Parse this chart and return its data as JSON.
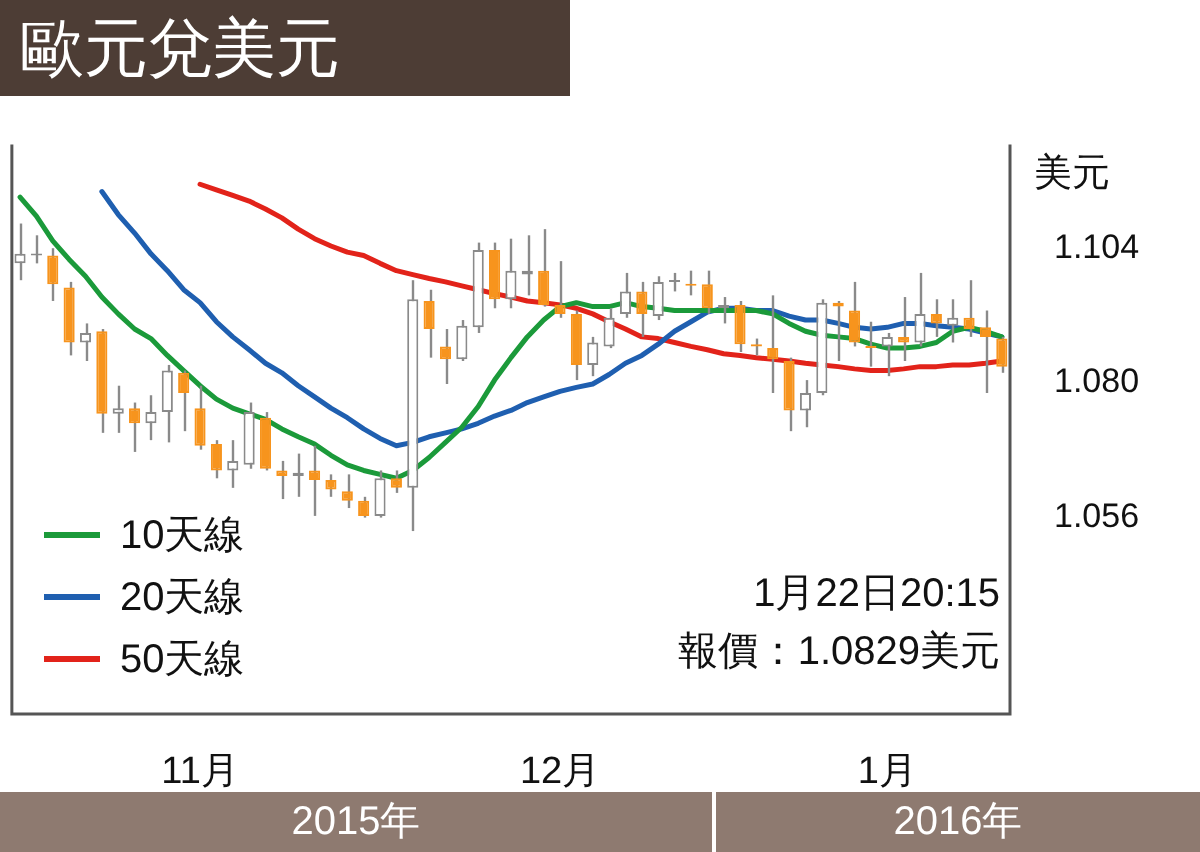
{
  "chart_data": {
    "type": "candlestick",
    "title": "歐元兌美元",
    "ylabel": "美元",
    "categories": [
      null,
      null,
      null,
      null,
      null,
      null,
      null,
      null,
      null,
      null,
      null,
      "11月",
      null,
      null,
      null,
      null,
      null,
      null,
      null,
      null,
      null,
      null,
      null,
      null,
      null,
      null,
      null,
      null,
      null,
      null,
      null,
      null,
      null,
      "12月",
      null,
      null,
      null,
      null,
      null,
      null,
      null,
      null,
      null,
      null,
      null,
      null,
      null,
      null,
      null,
      null,
      null,
      null,
      null,
      "1月",
      null,
      null,
      null,
      null,
      null,
      null,
      null
    ],
    "ohlc": [
      [
        1.1013,
        1.1084,
        1.0983,
        1.103
      ],
      [
        1.1027,
        1.1063,
        1.1013,
        1.103
      ],
      [
        1.1027,
        1.104,
        1.0946,
        1.0976
      ],
      [
        1.097,
        1.098,
        1.0849,
        1.0872
      ],
      [
        1.0872,
        1.0906,
        1.0839,
        1.0889
      ],
      [
        1.0892,
        1.0896,
        1.0711,
        1.0745
      ],
      [
        1.0745,
        1.0795,
        1.0711,
        1.0755
      ],
      [
        1.0755,
        1.0765,
        1.0677,
        1.0728
      ],
      [
        1.0728,
        1.0778,
        1.0698,
        1.0748
      ],
      [
        1.0748,
        1.0832,
        1.0694,
        1.0822
      ],
      [
        1.0818,
        1.0822,
        1.0714,
        1.0782
      ],
      [
        1.0755,
        1.0795,
        1.0681,
        1.0688
      ],
      [
        1.0691,
        1.0698,
        1.063,
        1.0644
      ],
      [
        1.0644,
        1.0698,
        1.0613,
        1.0661
      ],
      [
        1.0654,
        1.0765,
        1.0647,
        1.0748
      ],
      [
        1.0738,
        1.0748,
        1.0644,
        1.0647
      ],
      [
        1.0644,
        1.0661,
        1.0593,
        1.0634
      ],
      [
        1.0634,
        1.0674,
        1.0597,
        1.064
      ],
      [
        1.0644,
        1.0688,
        1.0563,
        1.0627
      ],
      [
        1.0627,
        1.0637,
        1.0597,
        1.061
      ],
      [
        1.0607,
        1.0637,
        1.0577,
        1.059
      ],
      [
        1.059,
        1.0597,
        1.056,
        1.0563
      ],
      [
        1.0563,
        1.0644,
        1.056,
        1.063
      ],
      [
        1.063,
        1.0644,
        1.0604,
        1.0613
      ],
      [
        1.0613,
        1.0983,
        1.0536,
        1.0949
      ],
      [
        1.0946,
        1.0966,
        1.0845,
        1.0896
      ],
      [
        1.0865,
        1.0896,
        1.0798,
        1.0842
      ],
      [
        1.0842,
        1.0912,
        1.0839,
        1.0902
      ],
      [
        1.0899,
        1.105,
        1.0889,
        1.1037
      ],
      [
        1.1037,
        1.105,
        1.0933,
        1.0949
      ],
      [
        1.0949,
        1.1057,
        1.0933,
        1.1
      ],
      [
        1.0993,
        1.1063,
        1.0956,
        1.1
      ],
      [
        1.1,
        1.1074,
        1.0936,
        1.0939
      ],
      [
        1.0939,
        1.1017,
        1.0916,
        1.0923
      ],
      [
        1.0923,
        1.0929,
        1.0805,
        1.0832
      ],
      [
        1.0832,
        1.0882,
        1.0812,
        1.0872
      ],
      [
        1.0865,
        1.0933,
        1.0862,
        1.0916
      ],
      [
        1.0923,
        1.0996,
        1.0916,
        1.0963
      ],
      [
        1.0963,
        1.098,
        1.0882,
        1.0923
      ],
      [
        1.0919,
        1.099,
        1.0912,
        1.098
      ],
      [
        1.098,
        1.0996,
        1.0963,
        1.0983
      ],
      [
        1.0976,
        1.1,
        1.0956,
        1.0973
      ],
      [
        1.0976,
        1.1,
        1.0923,
        1.0933
      ],
      [
        1.0933,
        1.0953,
        1.0906,
        1.0939
      ],
      [
        1.0939,
        1.0946,
        1.0855,
        1.0869
      ],
      [
        1.0869,
        1.0879,
        1.0849,
        1.0865
      ],
      [
        1.0862,
        1.0956,
        1.0782,
        1.0842
      ],
      [
        1.0839,
        1.0845,
        1.0714,
        1.0751
      ],
      [
        1.0751,
        1.0805,
        1.0721,
        1.0782
      ],
      [
        1.0782,
        1.0949,
        1.0778,
        1.0943
      ],
      [
        1.0943,
        1.0946,
        1.0839,
        1.0936
      ],
      [
        1.0929,
        1.098,
        1.0865,
        1.0872
      ],
      [
        1.0865,
        1.0909,
        1.0829,
        1.0862
      ],
      [
        1.0865,
        1.0889,
        1.0812,
        1.0882
      ],
      [
        1.0882,
        1.0953,
        1.0839,
        1.0872
      ],
      [
        1.0872,
        1.0996,
        1.0865,
        1.0923
      ],
      [
        1.0923,
        1.0949,
        1.0882,
        1.0906
      ],
      [
        1.0902,
        1.0949,
        1.0872,
        1.0916
      ],
      [
        1.0916,
        1.0983,
        1.0882,
        1.0896
      ],
      [
        1.0899,
        1.0929,
        1.0782,
        1.0882
      ],
      [
        1.0879,
        1.0882,
        1.0818,
        1.0829
      ]
    ],
    "colors": [
      "#8a8a8a",
      "#8a8a8a",
      "#f7941d",
      "#f7941d",
      "#8a8a8a",
      "#f7941d",
      "#8a8a8a",
      "#f7941d",
      "#8a8a8a",
      "#8a8a8a",
      "#f7941d",
      "#f7941d",
      "#f7941d",
      "#8a8a8a",
      "#8a8a8a",
      "#f7941d",
      "#f7941d",
      "#8a8a8a",
      "#f7941d",
      "#f7941d",
      "#f7941d",
      "#f7941d",
      "#8a8a8a",
      "#f7941d",
      "#8a8a8a",
      "#f7941d",
      "#f7941d",
      "#8a8a8a",
      "#8a8a8a",
      "#f7941d",
      "#8a8a8a",
      "#8a8a8a",
      "#f7941d",
      "#f7941d",
      "#f7941d",
      "#8a8a8a",
      "#8a8a8a",
      "#8a8a8a",
      "#f7941d",
      "#8a8a8a",
      "#8a8a8a",
      "#f7941d",
      "#f7941d",
      "#8a8a8a",
      "#f7941d",
      "#f7941d",
      "#f7941d",
      "#f7941d",
      "#8a8a8a",
      "#8a8a8a",
      "#f7941d",
      "#f7941d",
      "#f7941d",
      "#8a8a8a",
      "#f7941d",
      "#8a8a8a",
      "#f7941d",
      "#8a8a8a",
      "#f7941d",
      "#f7941d",
      "#f7941d"
    ],
    "series": [
      {
        "type": "line",
        "name": "10天線",
        "color": "#1b9a3a",
        "values": [
          1.1131,
          1.1097,
          1.1053,
          1.102,
          1.099,
          1.0953,
          1.0923,
          1.0896,
          1.0879,
          1.0849,
          1.0822,
          1.0795,
          1.0771,
          1.0755,
          1.0745,
          1.0735,
          1.0718,
          1.0704,
          1.0691,
          1.0671,
          1.0654,
          1.0644,
          1.0637,
          1.063,
          1.0644,
          1.0667,
          1.0694,
          1.0721,
          1.0758,
          1.0805,
          1.0845,
          1.0882,
          1.0912,
          1.0936,
          1.0943,
          1.0936,
          1.0936,
          1.0943,
          1.0936,
          1.0933,
          1.0929,
          1.0929,
          1.0929,
          1.0929,
          1.0929,
          1.0929,
          1.0923,
          1.0906,
          1.0892,
          1.0885,
          1.0882,
          1.0879,
          1.0869,
          1.0862,
          1.0862,
          1.0865,
          1.0872,
          1.0892,
          1.0899,
          1.0892,
          1.0882
        ]
      },
      {
        "type": "line",
        "name": "20天線",
        "color": "#1f5fb0",
        "values": [
          null,
          null,
          null,
          null,
          null,
          1.1141,
          1.11,
          1.1067,
          1.103,
          1.1,
          1.0966,
          1.0943,
          1.0909,
          1.0882,
          1.0859,
          1.0835,
          1.0818,
          1.0795,
          1.0775,
          1.0755,
          1.0738,
          1.0718,
          1.0701,
          1.0688,
          1.0694,
          1.0704,
          1.0711,
          1.0718,
          1.0728,
          1.0741,
          1.0751,
          1.0765,
          1.0775,
          1.0785,
          1.0792,
          1.0798,
          1.0815,
          1.0835,
          1.0849,
          1.0869,
          1.0892,
          1.0909,
          1.0926,
          1.0933,
          1.0933,
          1.0929,
          1.0929,
          1.0919,
          1.0912,
          1.0912,
          1.0906,
          1.0899,
          1.0896,
          1.0899,
          1.0906,
          1.0906,
          1.0902,
          1.0899,
          1.0896,
          1.0889,
          1.0882
        ]
      },
      {
        "type": "line",
        "name": "50天線",
        "color": "#e2231a",
        "values": [
          null,
          null,
          null,
          null,
          null,
          null,
          null,
          null,
          null,
          null,
          null,
          1.1154,
          1.1144,
          1.1134,
          1.1124,
          1.111,
          1.1094,
          1.1074,
          1.1057,
          1.1044,
          1.1033,
          1.1027,
          1.1013,
          1.1,
          1.0993,
          1.0986,
          1.098,
          1.0973,
          1.0966,
          1.0959,
          1.0953,
          1.0946,
          1.0943,
          1.0939,
          1.0933,
          1.0923,
          1.0909,
          1.0896,
          1.0882,
          1.0879,
          1.0872,
          1.0865,
          1.0859,
          1.0852,
          1.0849,
          1.0845,
          1.0842,
          1.0839,
          1.0835,
          1.0832,
          1.0829,
          1.0825,
          1.0822,
          1.0822,
          1.0825,
          1.0829,
          1.0829,
          1.0832,
          1.0832,
          1.0835,
          1.0839
        ]
      }
    ],
    "ylim": [
      1.021,
      1.1225
    ],
    "yticks": [
      1.104,
      {
        "value": 1.08,
        "label": "1.080"
      },
      1.056
    ],
    "marker": "none",
    "legend": "bottom left",
    "annotations": [
      "1月22日20:15",
      "報價：1.0829美元",
      "2015年",
      "2016年"
    ]
  }
}
